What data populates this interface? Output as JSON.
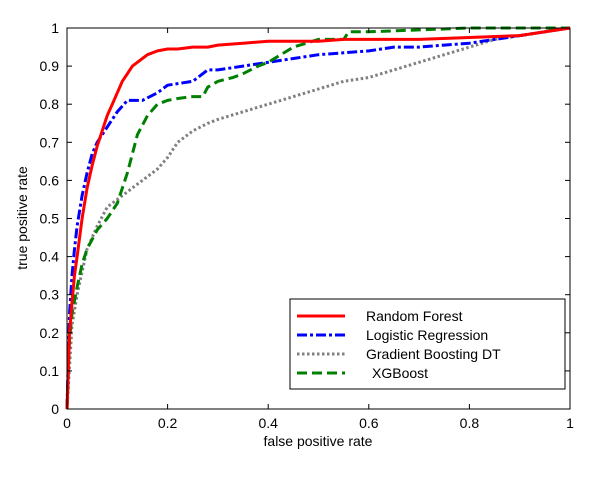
{
  "chart_data": {
    "type": "line",
    "title": "",
    "xlabel": "false positive rate",
    "ylabel": "true positive rate",
    "xlim": [
      0,
      1
    ],
    "ylim": [
      0,
      1
    ],
    "xticks": [
      0,
      0.2,
      0.4,
      0.6,
      0.8,
      1
    ],
    "xtick_labels": [
      "0",
      "0.2",
      "0.4",
      "0.6",
      "0.8",
      "1"
    ],
    "yticks": [
      0,
      0.1,
      0.2,
      0.3,
      0.4,
      0.5,
      0.6,
      0.7,
      0.8,
      0.9,
      1
    ],
    "ytick_labels": [
      "0",
      "0.1",
      "0.2",
      "0.3",
      "0.4",
      "0.5",
      "0.6",
      "0.7",
      "0.8",
      "0.9",
      "1"
    ],
    "grid": false,
    "legend_position": "lower-right",
    "series": [
      {
        "name": "Random Forest",
        "color": "#ff0000",
        "style": "solid",
        "x": [
          0,
          0.005,
          0.01,
          0.015,
          0.02,
          0.03,
          0.04,
          0.05,
          0.06,
          0.07,
          0.08,
          0.09,
          0.1,
          0.11,
          0.12,
          0.13,
          0.14,
          0.15,
          0.16,
          0.18,
          0.2,
          0.22,
          0.25,
          0.28,
          0.3,
          0.35,
          0.4,
          0.45,
          0.5,
          0.55,
          0.6,
          0.7,
          0.8,
          0.9,
          1
        ],
        "y": [
          0,
          0.2,
          0.28,
          0.35,
          0.4,
          0.5,
          0.58,
          0.64,
          0.69,
          0.73,
          0.77,
          0.8,
          0.83,
          0.86,
          0.88,
          0.9,
          0.91,
          0.92,
          0.93,
          0.94,
          0.945,
          0.945,
          0.95,
          0.95,
          0.955,
          0.96,
          0.965,
          0.965,
          0.965,
          0.97,
          0.97,
          0.97,
          0.975,
          0.98,
          1
        ]
      },
      {
        "name": "Logistic Regression",
        "color": "#0000ff",
        "style": "dashdot",
        "x": [
          0,
          0.005,
          0.01,
          0.015,
          0.02,
          0.03,
          0.04,
          0.05,
          0.06,
          0.07,
          0.08,
          0.09,
          0.1,
          0.12,
          0.15,
          0.18,
          0.2,
          0.25,
          0.28,
          0.3,
          0.35,
          0.4,
          0.45,
          0.5,
          0.55,
          0.6,
          0.65,
          0.7,
          0.75,
          0.8,
          0.85,
          0.9,
          0.95,
          1
        ],
        "y": [
          0,
          0.25,
          0.35,
          0.42,
          0.48,
          0.56,
          0.62,
          0.67,
          0.7,
          0.72,
          0.74,
          0.76,
          0.78,
          0.81,
          0.81,
          0.83,
          0.85,
          0.86,
          0.89,
          0.89,
          0.9,
          0.91,
          0.92,
          0.93,
          0.935,
          0.94,
          0.95,
          0.95,
          0.955,
          0.96,
          0.97,
          0.98,
          0.99,
          1
        ]
      },
      {
        "name": "Gradient Boosting DT",
        "color": "#808080",
        "style": "dotted",
        "x": [
          0,
          0.01,
          0.02,
          0.03,
          0.04,
          0.06,
          0.08,
          0.1,
          0.12,
          0.15,
          0.18,
          0.2,
          0.22,
          0.25,
          0.28,
          0.3,
          0.35,
          0.4,
          0.45,
          0.5,
          0.55,
          0.6,
          0.65,
          0.7,
          0.75,
          0.8,
          0.85,
          0.9,
          0.95,
          1
        ],
        "y": [
          0,
          0.22,
          0.3,
          0.36,
          0.42,
          0.48,
          0.53,
          0.55,
          0.57,
          0.6,
          0.63,
          0.66,
          0.7,
          0.73,
          0.75,
          0.76,
          0.78,
          0.8,
          0.82,
          0.84,
          0.86,
          0.87,
          0.89,
          0.91,
          0.93,
          0.95,
          0.97,
          0.98,
          0.99,
          1
        ]
      },
      {
        "name": "XGBoost",
        "color": "#008000",
        "style": "dashed",
        "x": [
          0,
          0.005,
          0.01,
          0.02,
          0.03,
          0.04,
          0.06,
          0.08,
          0.1,
          0.12,
          0.14,
          0.16,
          0.18,
          0.2,
          0.22,
          0.25,
          0.27,
          0.28,
          0.3,
          0.33,
          0.35,
          0.38,
          0.4,
          0.45,
          0.5,
          0.55,
          0.56,
          0.6,
          0.7,
          0.8,
          0.9,
          1
        ],
        "y": [
          0,
          0.18,
          0.25,
          0.32,
          0.38,
          0.42,
          0.47,
          0.5,
          0.54,
          0.62,
          0.72,
          0.77,
          0.8,
          0.81,
          0.815,
          0.82,
          0.82,
          0.845,
          0.86,
          0.87,
          0.88,
          0.9,
          0.91,
          0.95,
          0.97,
          0.97,
          0.99,
          0.99,
          0.995,
          1,
          1,
          1
        ]
      }
    ]
  }
}
